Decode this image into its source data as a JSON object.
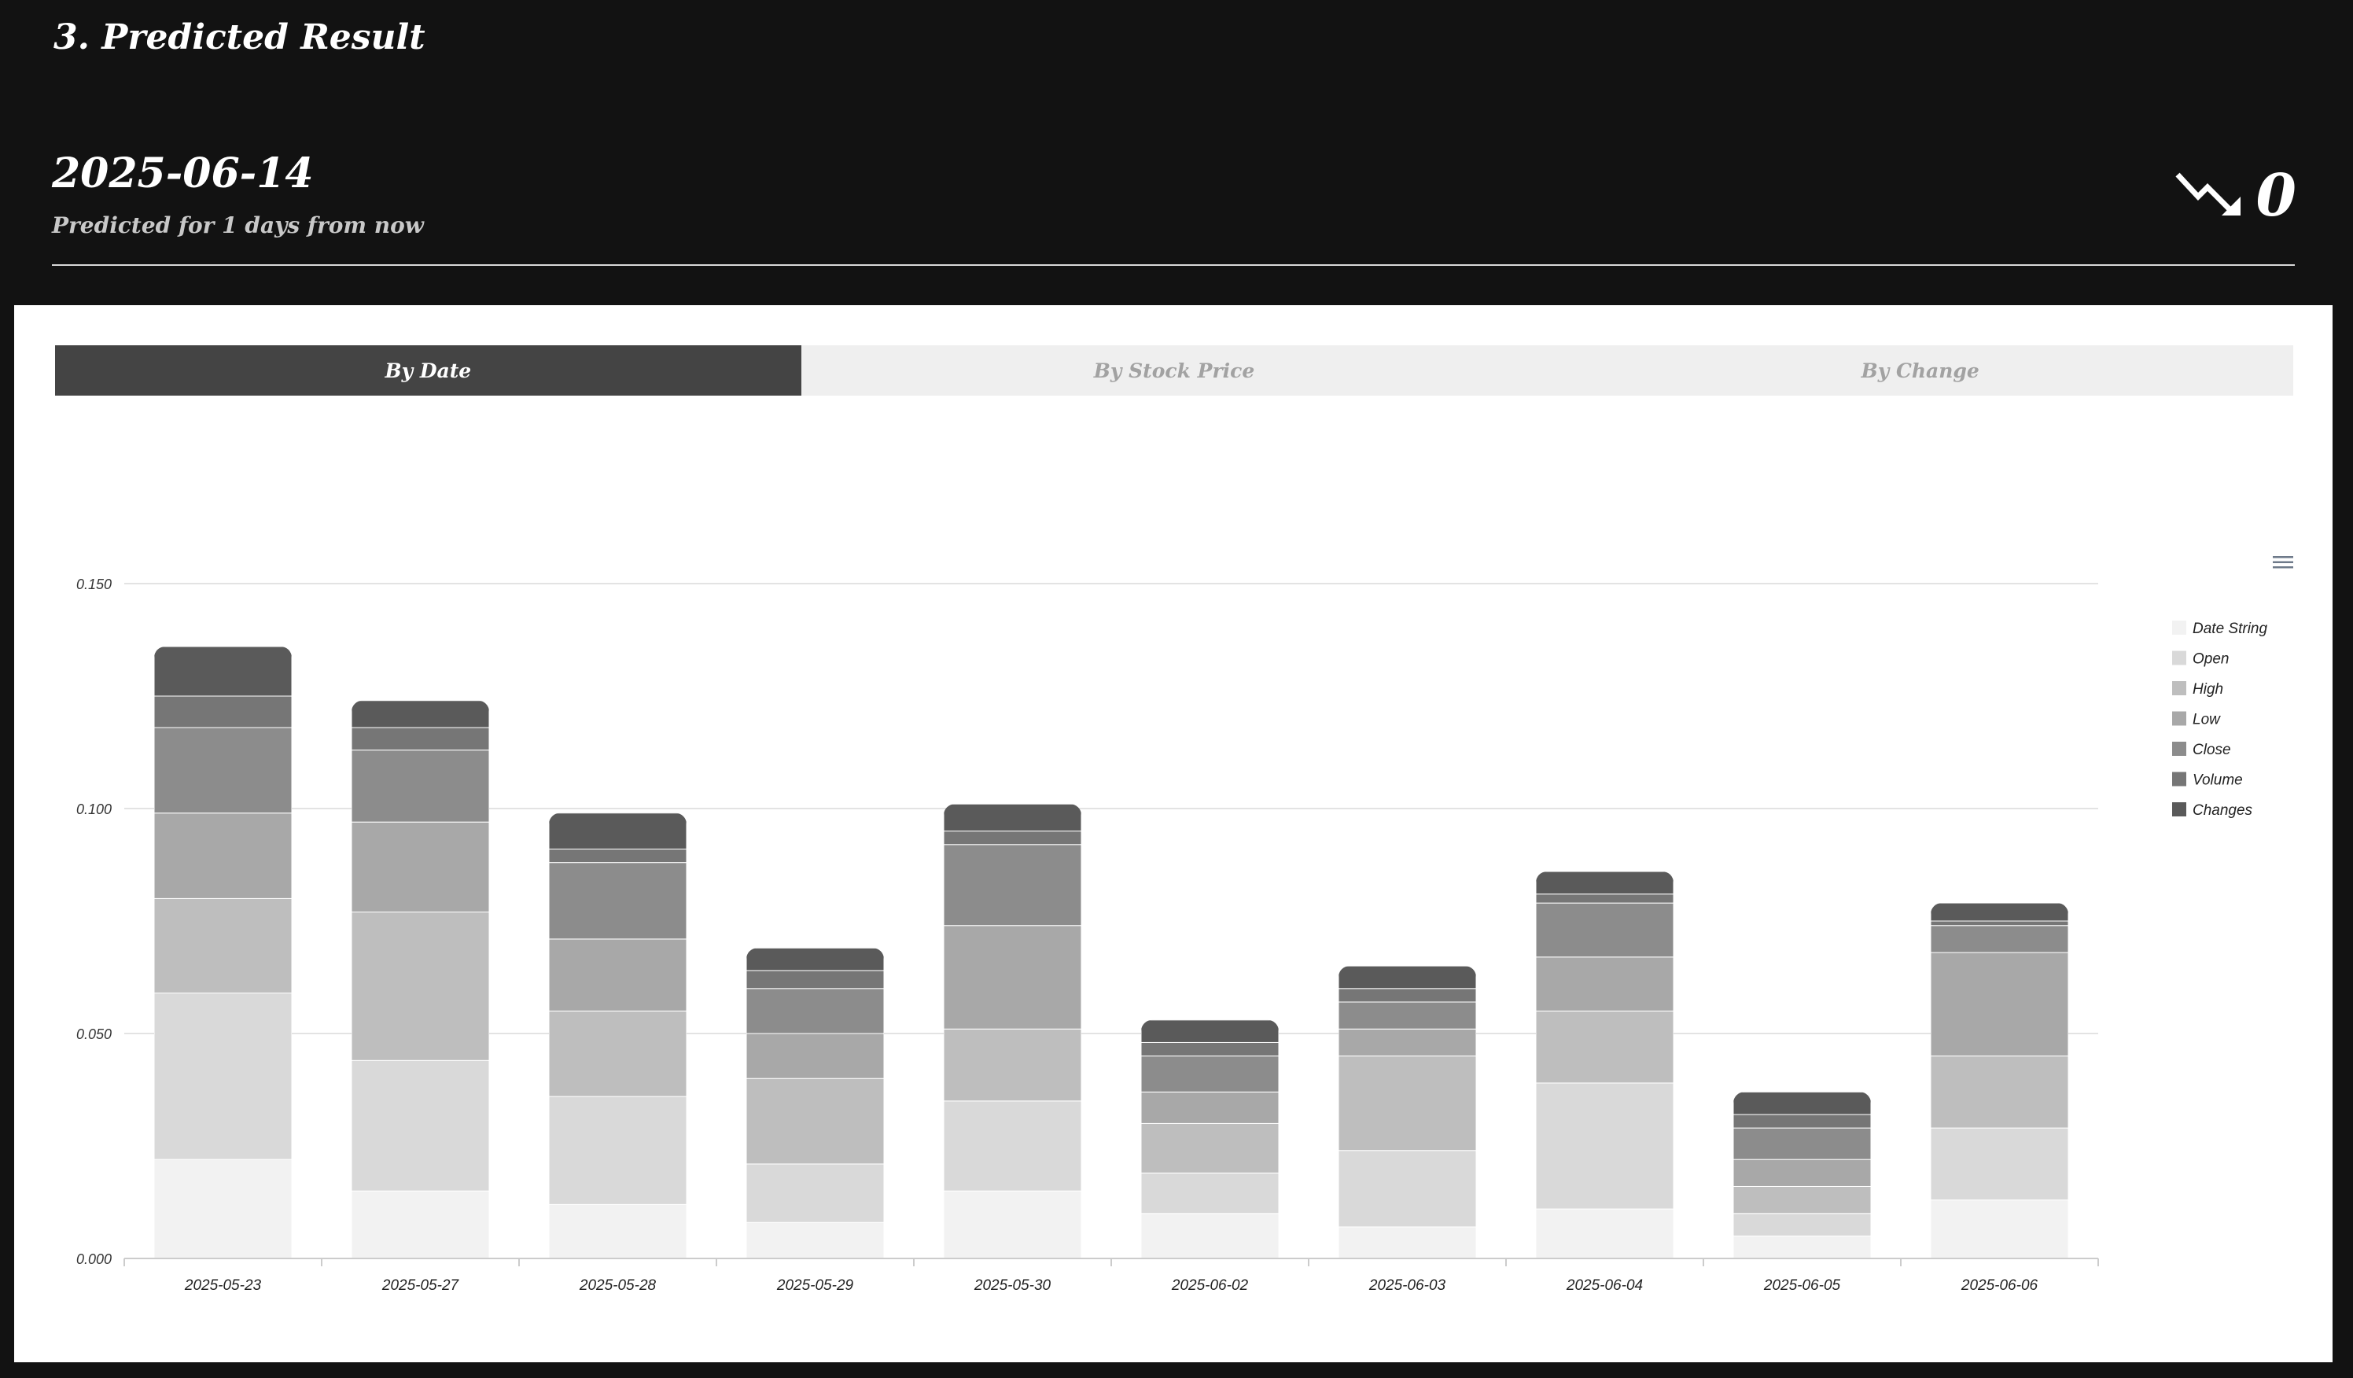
{
  "header": {
    "section_title": "3. Predicted Result",
    "prediction_date": "2025-06-14",
    "prediction_subtitle": "Predicted for 1 days from now",
    "trend_icon": "trend-down-arrow-icon",
    "trend_value": "0"
  },
  "tabs": [
    {
      "label": "By Date",
      "active": true
    },
    {
      "label": "By Stock Price",
      "active": false
    },
    {
      "label": "By Change",
      "active": false
    }
  ],
  "chart_menu_icon": "hamburger-menu-icon",
  "chart_data": {
    "type": "bar",
    "stacked": true,
    "title": "",
    "xlabel": "",
    "ylabel": "",
    "ylim": [
      0,
      0.15
    ],
    "yticks": [
      "0.000",
      "0.050",
      "0.100",
      "0.150"
    ],
    "grid": true,
    "legend_position": "right",
    "categories": [
      "2025-05-23",
      "2025-05-27",
      "2025-05-28",
      "2025-05-29",
      "2025-05-30",
      "2025-06-02",
      "2025-06-03",
      "2025-06-04",
      "2025-06-05",
      "2025-06-06"
    ],
    "series": [
      {
        "name": "Date String",
        "color": "#f2f2f2",
        "values": [
          0.022,
          0.015,
          0.012,
          0.008,
          0.015,
          0.01,
          0.007,
          0.011,
          0.005,
          0.013
        ]
      },
      {
        "name": "Open",
        "color": "#d9d9d9",
        "values": [
          0.037,
          0.029,
          0.024,
          0.013,
          0.02,
          0.009,
          0.017,
          0.028,
          0.005,
          0.016
        ]
      },
      {
        "name": "High",
        "color": "#bebebe",
        "values": [
          0.021,
          0.033,
          0.019,
          0.019,
          0.016,
          0.011,
          0.021,
          0.016,
          0.006,
          0.016
        ]
      },
      {
        "name": "Low",
        "color": "#a8a8a8",
        "values": [
          0.019,
          0.02,
          0.016,
          0.01,
          0.023,
          0.007,
          0.006,
          0.012,
          0.006,
          0.023
        ]
      },
      {
        "name": "Close",
        "color": "#8c8c8c",
        "values": [
          0.019,
          0.016,
          0.017,
          0.01,
          0.018,
          0.008,
          0.006,
          0.012,
          0.007,
          0.006
        ]
      },
      {
        "name": "Volume",
        "color": "#767676",
        "values": [
          0.007,
          0.005,
          0.003,
          0.004,
          0.003,
          0.003,
          0.003,
          0.002,
          0.003,
          0.001
        ]
      },
      {
        "name": "Changes",
        "color": "#5a5a5a",
        "values": [
          0.011,
          0.006,
          0.008,
          0.005,
          0.006,
          0.005,
          0.005,
          0.005,
          0.005,
          0.004
        ]
      }
    ]
  }
}
